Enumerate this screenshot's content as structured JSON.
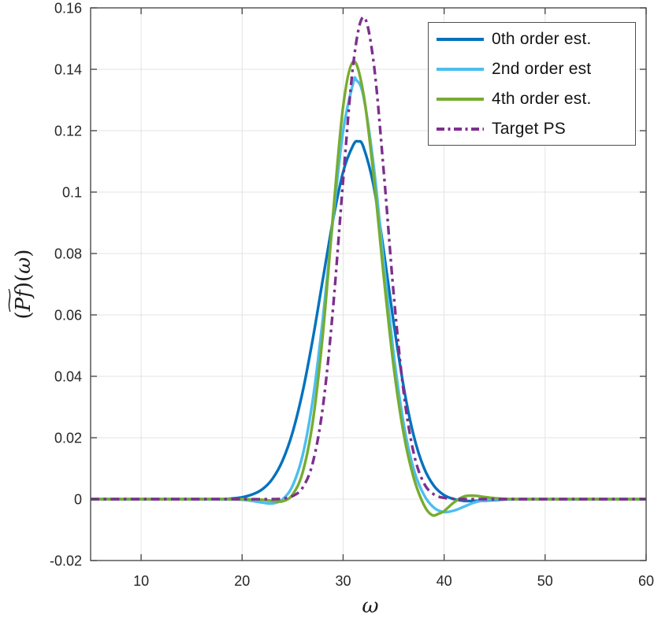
{
  "figure": {
    "background": "#ffffff"
  },
  "chart_data": {
    "type": "line",
    "title": "",
    "xlabel": "ω",
    "ylabel": "(P̃f)(ω)",
    "ylabel_parts": {
      "open": "(",
      "tilde": "∼",
      "core": "Pf",
      "close": ")(",
      "omega": "ω",
      "end": ")"
    },
    "xlim": [
      5,
      60
    ],
    "ylim": [
      -0.02,
      0.16
    ],
    "xticks": [
      10,
      20,
      30,
      40,
      50,
      60
    ],
    "xtick_labels": [
      "10",
      "20",
      "30",
      "40",
      "50",
      "60"
    ],
    "yticks": [
      -0.02,
      0,
      0.02,
      0.04,
      0.06,
      0.08,
      0.1,
      0.12,
      0.14,
      0.16
    ],
    "ytick_labels": [
      "-0.02",
      "0",
      "0.02",
      "0.04",
      "0.06",
      "0.08",
      "0.1",
      "0.12",
      "0.14",
      "0.16"
    ],
    "grid": true,
    "legend_position": "northeast",
    "style": {
      "grid_color": "#e3e3e3",
      "axis_color": "#4b4b4b",
      "tick_text_color": "#262626",
      "line_width": 3.4,
      "dash_dot_pattern": "11 5.5 3.5 5.5"
    },
    "series": [
      {
        "name": "0th order est.",
        "color": "#0072BD",
        "style": "solid",
        "peak": {
          "x": 31.5,
          "y": 0.1165
        },
        "points": [
          [
            5,
            0
          ],
          [
            10,
            0
          ],
          [
            15,
            0
          ],
          [
            18,
            0
          ],
          [
            19,
            0.0002
          ],
          [
            20,
            0.0006
          ],
          [
            21,
            0.0015
          ],
          [
            22,
            0.0032
          ],
          [
            23,
            0.0066
          ],
          [
            24,
            0.0125
          ],
          [
            25,
            0.0218
          ],
          [
            26,
            0.0351
          ],
          [
            27,
            0.0522
          ],
          [
            28,
            0.0717
          ],
          [
            29,
            0.0909
          ],
          [
            30,
            0.1066
          ],
          [
            31,
            0.1153
          ],
          [
            31.5,
            0.1165
          ],
          [
            32,
            0.1148
          ],
          [
            33,
            0.1024
          ],
          [
            34,
            0.0814
          ],
          [
            35,
            0.0576
          ],
          [
            36,
            0.0364
          ],
          [
            37,
            0.0205
          ],
          [
            38,
            0.0102
          ],
          [
            39,
            0.0043
          ],
          [
            40,
            0.0013
          ],
          [
            41,
            0
          ],
          [
            42,
            -0.0006
          ],
          [
            43,
            -0.0006
          ],
          [
            44,
            -0.0005
          ],
          [
            45,
            -0.0003
          ],
          [
            46,
            -0.0001
          ],
          [
            47,
            0
          ],
          [
            50,
            0
          ],
          [
            55,
            0
          ],
          [
            60,
            0
          ]
        ]
      },
      {
        "name": "2nd order est",
        "color": "#4DBEEE",
        "style": "solid",
        "peak": {
          "x": 31.3,
          "y": 0.1365
        },
        "points": [
          [
            5,
            0
          ],
          [
            10,
            0
          ],
          [
            15,
            0
          ],
          [
            19,
            -0.0001
          ],
          [
            20,
            -0.0002
          ],
          [
            21,
            -0.0006
          ],
          [
            22,
            -0.0011
          ],
          [
            23,
            -0.0014
          ],
          [
            24,
            -0.0001
          ],
          [
            25,
            0.0044
          ],
          [
            26,
            0.0144
          ],
          [
            27,
            0.0324
          ],
          [
            28,
            0.059
          ],
          [
            29,
            0.0909
          ],
          [
            30,
            0.1199
          ],
          [
            31,
            0.1356
          ],
          [
            31.3,
            0.1365
          ],
          [
            32,
            0.1314
          ],
          [
            33,
            0.1093
          ],
          [
            34,
            0.0779
          ],
          [
            35,
            0.0476
          ],
          [
            36,
            0.0244
          ],
          [
            37,
            0.0096
          ],
          [
            38,
            0.0014
          ],
          [
            39,
            -0.0028
          ],
          [
            40,
            -0.0042
          ],
          [
            41,
            -0.0037
          ],
          [
            42,
            -0.0024
          ],
          [
            43,
            -0.0011
          ],
          [
            44,
            -0.0004
          ],
          [
            45,
            -0.0001
          ],
          [
            46,
            0
          ],
          [
            50,
            0
          ],
          [
            55,
            0
          ],
          [
            60,
            0
          ]
        ]
      },
      {
        "name": "4th order est.",
        "color": "#77AC30",
        "style": "solid",
        "peak": {
          "x": 31.0,
          "y": 0.1425
        },
        "points": [
          [
            5,
            0
          ],
          [
            10,
            0
          ],
          [
            15,
            0
          ],
          [
            20,
            0
          ],
          [
            21,
            -0.0001
          ],
          [
            22,
            -0.0002
          ],
          [
            23,
            -0.0006
          ],
          [
            24,
            -0.0007
          ],
          [
            25,
            0.0015
          ],
          [
            26,
            0.0088
          ],
          [
            27,
            0.0253
          ],
          [
            28,
            0.0539
          ],
          [
            29,
            0.0925
          ],
          [
            30,
            0.1279
          ],
          [
            31,
            0.1425
          ],
          [
            32,
            0.1323
          ],
          [
            33,
            0.106
          ],
          [
            34,
            0.0732
          ],
          [
            35,
            0.0433
          ],
          [
            36,
            0.0212
          ],
          [
            37,
            0.0068
          ],
          [
            38,
            -0.0019
          ],
          [
            38.8,
            -0.0052
          ],
          [
            39.5,
            -0.0047
          ],
          [
            40,
            -0.0039
          ],
          [
            41,
            -0.001
          ],
          [
            42,
            0.0009
          ],
          [
            43,
            0.0011
          ],
          [
            44,
            0.0007
          ],
          [
            45,
            0.0003
          ],
          [
            46,
            0.0001
          ],
          [
            47,
            0
          ],
          [
            50,
            0
          ],
          [
            55,
            0
          ],
          [
            60,
            0
          ]
        ]
      },
      {
        "name": "Target PS",
        "color": "#7E2F8E",
        "style": "dash-dot",
        "peak": {
          "x": 32.0,
          "y": 0.157
        },
        "points": [
          [
            5,
            0
          ],
          [
            10,
            0
          ],
          [
            15,
            0
          ],
          [
            20,
            0
          ],
          [
            23,
            0
          ],
          [
            24,
            0.0002
          ],
          [
            25,
            0.001
          ],
          [
            26,
            0.0038
          ],
          [
            27,
            0.0119
          ],
          [
            28,
            0.0301
          ],
          [
            29,
            0.062
          ],
          [
            30,
            0.1039
          ],
          [
            31,
            0.1416
          ],
          [
            32,
            0.157
          ],
          [
            33,
            0.1428
          ],
          [
            34,
            0.1076
          ],
          [
            35,
            0.0671
          ],
          [
            36,
            0.0346
          ],
          [
            37,
            0.0148
          ],
          [
            38,
            0.0052
          ],
          [
            39,
            0.0015
          ],
          [
            40,
            0.0004
          ],
          [
            41,
            0.0001
          ],
          [
            42,
            0
          ],
          [
            45,
            0
          ],
          [
            50,
            0
          ],
          [
            55,
            0
          ],
          [
            60,
            0
          ]
        ]
      }
    ]
  }
}
